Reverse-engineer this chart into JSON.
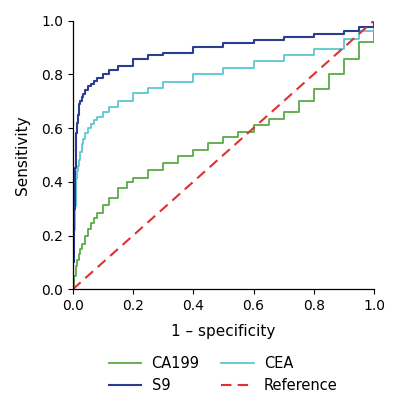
{
  "title": "",
  "xlabel": "1 – specificity",
  "ylabel": "Sensitivity",
  "xlim": [
    0.0,
    1.0
  ],
  "ylim": [
    0.0,
    1.0
  ],
  "xticks": [
    0.0,
    0.2,
    0.4,
    0.6,
    0.8,
    1.0
  ],
  "yticks": [
    0.0,
    0.2,
    0.4,
    0.6,
    0.8,
    1.0
  ],
  "colors": {
    "CA199": "#5aaa45",
    "CEA": "#5bc8d0",
    "S9": "#2a3d8f",
    "Reference": "#e03030"
  },
  "s9_fpr": [
    0,
    0.0,
    0.005,
    0.008,
    0.01,
    0.012,
    0.015,
    0.018,
    0.02,
    0.022,
    0.025,
    0.03,
    0.035,
    0.04,
    0.05,
    0.06,
    0.07,
    0.08,
    0.1,
    0.12,
    0.15,
    0.2,
    0.25,
    0.3,
    0.4,
    0.5,
    0.6,
    0.7,
    0.8,
    0.9,
    0.95,
    1.0
  ],
  "s9_tpr": [
    0,
    0.1,
    0.3,
    0.45,
    0.53,
    0.58,
    0.62,
    0.65,
    0.67,
    0.69,
    0.7,
    0.715,
    0.725,
    0.74,
    0.755,
    0.765,
    0.775,
    0.785,
    0.8,
    0.815,
    0.83,
    0.855,
    0.87,
    0.88,
    0.9,
    0.915,
    0.928,
    0.938,
    0.95,
    0.962,
    0.975,
    1.0
  ],
  "cea_fpr": [
    0,
    0.0,
    0.005,
    0.008,
    0.01,
    0.012,
    0.015,
    0.018,
    0.02,
    0.025,
    0.03,
    0.035,
    0.04,
    0.05,
    0.06,
    0.07,
    0.08,
    0.1,
    0.12,
    0.15,
    0.2,
    0.25,
    0.3,
    0.4,
    0.5,
    0.6,
    0.7,
    0.8,
    0.9,
    0.95,
    1.0
  ],
  "cea_tpr": [
    0,
    0.1,
    0.22,
    0.31,
    0.37,
    0.41,
    0.44,
    0.46,
    0.48,
    0.51,
    0.54,
    0.56,
    0.58,
    0.6,
    0.615,
    0.63,
    0.64,
    0.66,
    0.68,
    0.7,
    0.73,
    0.75,
    0.77,
    0.8,
    0.825,
    0.85,
    0.87,
    0.895,
    0.93,
    0.96,
    1.0
  ],
  "ca199_fpr": [
    0,
    0.005,
    0.01,
    0.015,
    0.02,
    0.025,
    0.03,
    0.04,
    0.05,
    0.06,
    0.07,
    0.08,
    0.1,
    0.12,
    0.15,
    0.18,
    0.2,
    0.25,
    0.3,
    0.35,
    0.4,
    0.45,
    0.5,
    0.55,
    0.6,
    0.65,
    0.7,
    0.75,
    0.8,
    0.85,
    0.9,
    0.95,
    1.0
  ],
  "ca199_tpr": [
    0,
    0.05,
    0.085,
    0.11,
    0.13,
    0.15,
    0.17,
    0.2,
    0.225,
    0.245,
    0.265,
    0.285,
    0.315,
    0.34,
    0.375,
    0.4,
    0.415,
    0.445,
    0.47,
    0.495,
    0.52,
    0.545,
    0.565,
    0.585,
    0.61,
    0.635,
    0.66,
    0.7,
    0.745,
    0.8,
    0.855,
    0.92,
    1.0
  ],
  "background_color": "#ffffff"
}
